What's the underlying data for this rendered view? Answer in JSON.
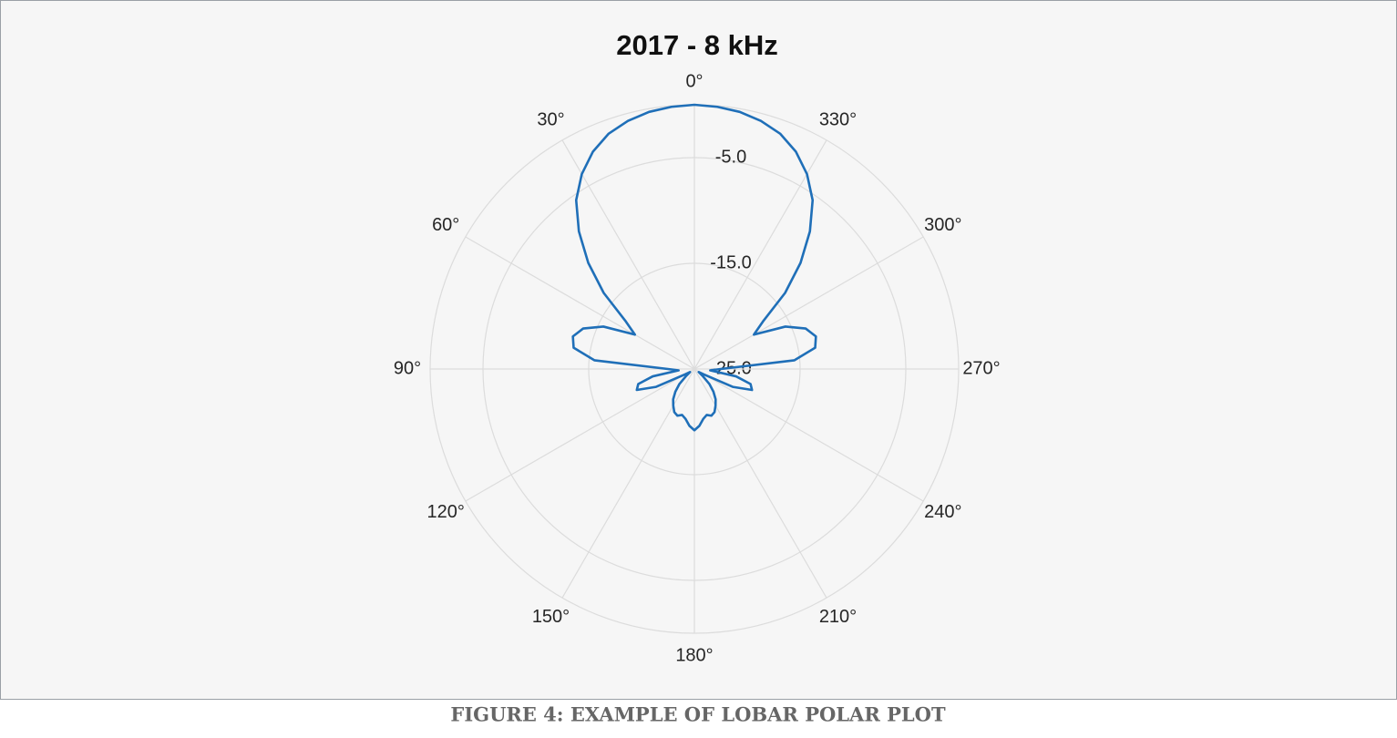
{
  "chart_data": {
    "type": "polar",
    "title": "2017 - 8 kHz",
    "caption": "FIGURE 4: EXAMPLE OF LOBAR POLAR PLOT",
    "theta_zero": "top",
    "theta_direction": "counterclockwise",
    "theta": [
      0,
      5,
      10,
      15,
      20,
      25,
      30,
      35,
      40,
      45,
      50,
      55,
      60,
      65,
      70,
      75,
      80,
      85,
      90,
      95,
      100,
      105,
      110,
      115,
      120,
      125,
      130,
      135,
      140,
      145,
      150,
      155,
      160,
      165,
      170,
      175,
      180,
      185,
      190,
      195,
      200,
      205,
      210,
      215,
      220,
      225,
      230,
      235,
      240,
      245,
      250,
      255,
      260,
      265,
      270,
      275,
      280,
      285,
      290,
      295,
      300,
      305,
      310,
      315,
      320,
      325,
      330,
      335,
      340,
      345,
      350,
      355
    ],
    "r": [
      0,
      -0.1,
      -0.3,
      -0.7,
      -1.3,
      -2.3,
      -3.7,
      -5.5,
      -8,
      -10.8,
      -13.8,
      -17,
      -18.5,
      -15.5,
      -13.8,
      -13.1,
      -13.4,
      -15.5,
      -22.5,
      -23.5,
      -21,
      -19.5,
      -19.2,
      -21,
      -24,
      -24.5,
      -24,
      -23,
      -22.2,
      -21.5,
      -21,
      -20.5,
      -20.3,
      -20.5,
      -20.2,
      -19.6,
      -19.2,
      -19.6,
      -20.2,
      -20.5,
      -20.3,
      -20.5,
      -21,
      -21.5,
      -22.2,
      -23,
      -24,
      -24.5,
      -24,
      -21,
      -19.2,
      -19.5,
      -21,
      -23.5,
      -22.5,
      -15.5,
      -13.4,
      -13.1,
      -13.8,
      -15.5,
      -18.5,
      -17,
      -13.8,
      -10.8,
      -8,
      -5.5,
      -3.7,
      -2.3,
      -1.3,
      -0.7,
      -0.3,
      -0.1
    ],
    "color": "#1f6fb8",
    "rlim": [
      -25,
      0
    ],
    "rticks": [
      {
        "value": -25,
        "label": "-25.0"
      },
      {
        "value": -15,
        "label": "-15.0"
      },
      {
        "value": -5,
        "label": "-5.0"
      }
    ],
    "thetaticks": [
      {
        "value": 0,
        "label": "0°"
      },
      {
        "value": 30,
        "label": "30°"
      },
      {
        "value": 60,
        "label": "60°"
      },
      {
        "value": 90,
        "label": "90°"
      },
      {
        "value": 120,
        "label": "120°"
      },
      {
        "value": 150,
        "label": "150°"
      },
      {
        "value": 180,
        "label": "180°"
      },
      {
        "value": 210,
        "label": "210°"
      },
      {
        "value": 240,
        "label": "240°"
      },
      {
        "value": 270,
        "label": "270°"
      },
      {
        "value": 300,
        "label": "300°"
      },
      {
        "value": 330,
        "label": "330°"
      }
    ],
    "grid": true
  }
}
